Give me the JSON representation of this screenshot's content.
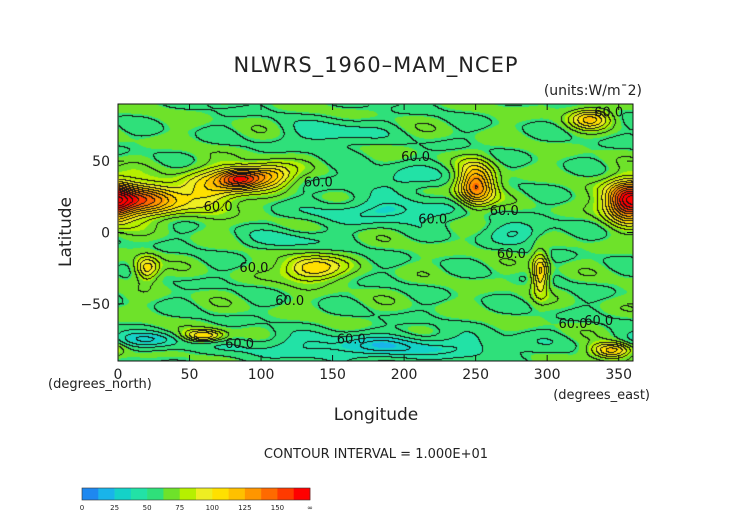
{
  "chart_data": {
    "type": "heatmap",
    "title": "NLWRS_1960–MAM_NCEP",
    "units": "(units:W/m¯2)",
    "xlabel": "Longitude",
    "ylabel": "Latitude",
    "x_unit": "(degrees_east)",
    "y_unit": "(degrees_north)",
    "xlim": [
      0,
      360
    ],
    "ylim": [
      -90,
      90
    ],
    "x_ticks": [
      0,
      50,
      100,
      150,
      200,
      250,
      300,
      350
    ],
    "y_ticks": [
      50,
      0,
      -50
    ],
    "contour_interval_text": "CONTOUR INTERVAL = 1.000E+01",
    "contour_labels": [
      {
        "text": "60.0",
        "x": 220,
        "y": 9
      },
      {
        "text": "60.0",
        "x": 208,
        "y": 53
      },
      {
        "text": "60.0",
        "x": 343,
        "y": 84
      },
      {
        "text": "60.0",
        "x": 70,
        "y": 18
      },
      {
        "text": "60.0",
        "x": 140,
        "y": 35
      },
      {
        "text": "60.0",
        "x": 275,
        "y": -15
      },
      {
        "text": "60.0",
        "x": 270,
        "y": 15
      },
      {
        "text": "60.0",
        "x": 95,
        "y": -25
      },
      {
        "text": "60.0",
        "x": 120,
        "y": -48
      },
      {
        "text": "60.0",
        "x": 318,
        "y": -64
      },
      {
        "text": "60.0",
        "x": 336,
        "y": -62
      },
      {
        "text": "60.0",
        "x": 85,
        "y": -78
      },
      {
        "text": "60.0",
        "x": 163,
        "y": -75
      }
    ],
    "hotspots": [
      {
        "lon": 15,
        "lat": 23,
        "peak": 150,
        "sx": 18,
        "sy": 8
      },
      {
        "lon": 65,
        "lat": 30,
        "peak": 110,
        "sx": 14,
        "sy": 10
      },
      {
        "lon": 85,
        "lat": 38,
        "peak": 140,
        "sx": 10,
        "sy": 5
      },
      {
        "lon": 105,
        "lat": 40,
        "peak": 120,
        "sx": 12,
        "sy": 6
      },
      {
        "lon": 250,
        "lat": 33,
        "peak": 145,
        "sx": 9,
        "sy": 10
      },
      {
        "lon": 355,
        "lat": 22,
        "peak": 140,
        "sx": 10,
        "sy": 10
      },
      {
        "lon": 20,
        "lat": -25,
        "peak": 110,
        "sx": 6,
        "sy": 6
      },
      {
        "lon": 135,
        "lat": -25,
        "peak": 115,
        "sx": 14,
        "sy": 6
      },
      {
        "lon": 295,
        "lat": -28,
        "peak": 115,
        "sx": 4,
        "sy": 10
      },
      {
        "lon": 330,
        "lat": 80,
        "peak": 110,
        "sx": 10,
        "sy": 5
      },
      {
        "lon": 345,
        "lat": -82,
        "peak": 120,
        "sx": 10,
        "sy": 4
      },
      {
        "lon": 60,
        "lat": -72,
        "peak": 115,
        "sx": 10,
        "sy": 3
      }
    ],
    "coldspots": [
      {
        "lon": 190,
        "lat": 15,
        "low": 35,
        "sx": 35,
        "sy": 6
      },
      {
        "lon": 200,
        "lat": 38,
        "low": 45,
        "sx": 25,
        "sy": 6
      },
      {
        "lon": 280,
        "lat": 0,
        "low": 40,
        "sx": 15,
        "sy": 5
      },
      {
        "lon": 120,
        "lat": -5,
        "low": 45,
        "sx": 20,
        "sy": 5
      },
      {
        "lon": 150,
        "lat": 70,
        "low": 40,
        "sx": 20,
        "sy": 6
      },
      {
        "lon": 180,
        "lat": -80,
        "low": 30,
        "sx": 60,
        "sy": 6
      },
      {
        "lon": 20,
        "lat": -75,
        "low": 35,
        "sx": 20,
        "sy": 4
      }
    ],
    "colorbar": {
      "ticks": [
        "0",
        "25",
        "50",
        "75",
        "100",
        "125",
        "150",
        "∞"
      ],
      "colors": [
        "#1e88f0",
        "#19b4ea",
        "#14d2c8",
        "#22e2a6",
        "#2fe07a",
        "#6ee22a",
        "#b6f000",
        "#eeee22",
        "#ffe000",
        "#ffc000",
        "#ff9600",
        "#ff6a00",
        "#ff3a00",
        "#ff0000"
      ]
    }
  }
}
